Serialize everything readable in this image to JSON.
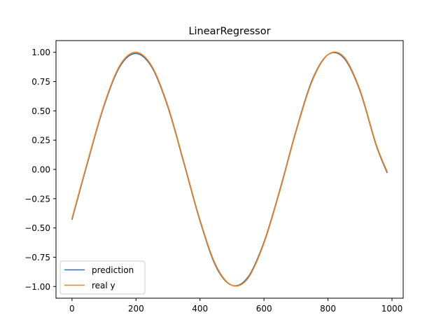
{
  "chart_data": {
    "type": "line",
    "title": "LinearRegressor",
    "xlabel": "",
    "ylabel": "",
    "xlim": [
      -50,
      1035
    ],
    "ylim": [
      -1.1,
      1.1
    ],
    "x_ticks": [
      0,
      200,
      400,
      600,
      800,
      1000
    ],
    "y_ticks": [
      1.0,
      0.75,
      0.5,
      0.25,
      0.0,
      -0.25,
      -0.5,
      -0.75,
      -1.0
    ],
    "x_tick_labels": [
      "0",
      "200",
      "400",
      "600",
      "800",
      "1000"
    ],
    "y_tick_labels": [
      "1.00",
      "0.75",
      "0.50",
      "0.25",
      "0.00",
      "−0.25",
      "−0.50",
      "−0.75",
      "−1.00"
    ],
    "grid": false,
    "legend": {
      "position": "lower-left"
    },
    "x_domain": [
      0,
      985
    ],
    "series": [
      {
        "name": "prediction",
        "color": "#1f77b4",
        "x": [
          0,
          50,
          100,
          150,
          200,
          250,
          300,
          350,
          400,
          450,
          500,
          550,
          600,
          650,
          700,
          750,
          800,
          850,
          900,
          950,
          985
        ],
        "y": [
          -0.43,
          0.07,
          0.54,
          0.88,
          0.99,
          0.87,
          0.53,
          0.05,
          -0.44,
          -0.83,
          -0.99,
          -0.92,
          -0.62,
          -0.17,
          0.33,
          0.76,
          0.98,
          0.95,
          0.67,
          0.21,
          -0.03
        ]
      },
      {
        "name": "real y",
        "color": "#ff7f0e",
        "x": [
          0,
          50,
          100,
          150,
          200,
          250,
          300,
          350,
          400,
          450,
          500,
          550,
          600,
          650,
          700,
          750,
          800,
          850,
          900,
          950,
          985
        ],
        "y": [
          -0.42,
          0.08,
          0.55,
          0.89,
          1.0,
          0.88,
          0.54,
          0.06,
          -0.43,
          -0.82,
          -0.99,
          -0.93,
          -0.63,
          -0.18,
          0.32,
          0.75,
          0.98,
          0.96,
          0.68,
          0.22,
          -0.02
        ]
      }
    ]
  }
}
